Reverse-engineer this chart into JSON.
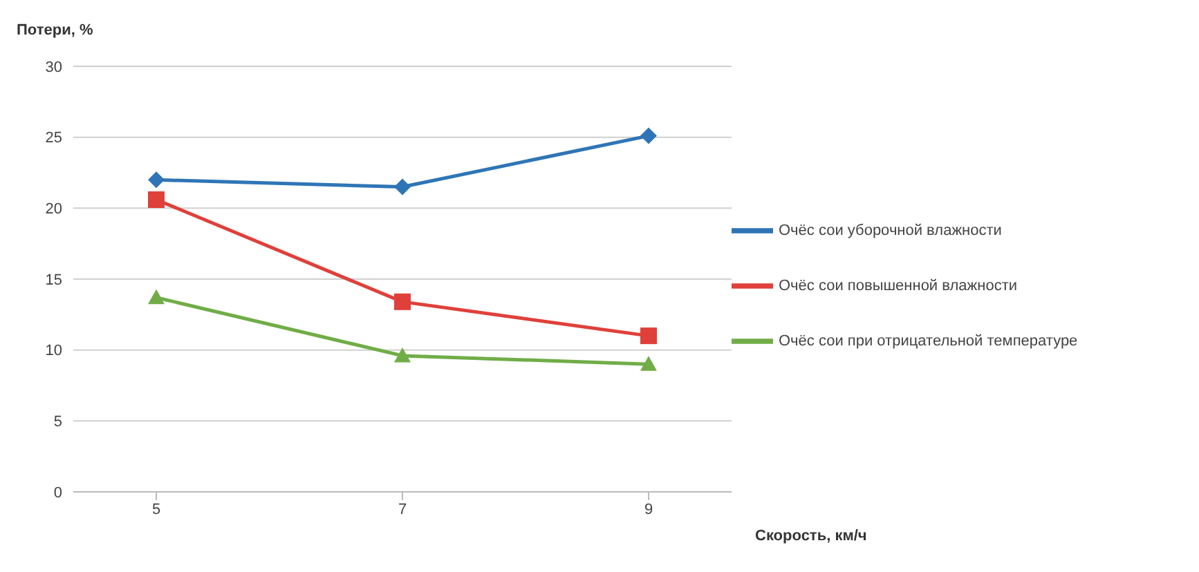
{
  "chart_data": {
    "type": "line",
    "ylabel": "Потери, %",
    "xlabel": "Скорость, км/ч",
    "categories": [
      "5",
      "7",
      "9"
    ],
    "series": [
      {
        "name": "Очёс сои уборочной влажности",
        "color": "#2e75b6",
        "marker": "diamond",
        "values": [
          22,
          21.5,
          25.1
        ]
      },
      {
        "name": "Очёс сои повышенной влажности",
        "color": "#e0403a",
        "marker": "square",
        "values": [
          20.6,
          13.4,
          11
        ]
      },
      {
        "name": "Очёс сои при отрицательной температуре",
        "color": "#70ad47",
        "marker": "triangle",
        "values": [
          13.7,
          9.6,
          9
        ]
      }
    ],
    "ylim": [
      0,
      30
    ],
    "yticks": [
      0,
      5,
      10,
      15,
      20,
      25,
      30
    ],
    "grid": "y",
    "legend": "right"
  }
}
